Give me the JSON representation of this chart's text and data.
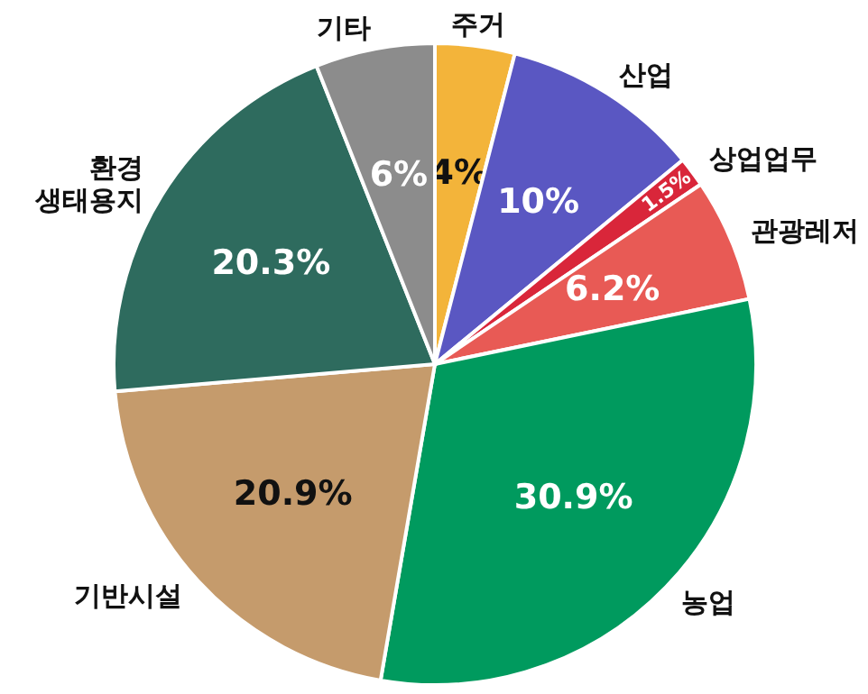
{
  "chart_data": {
    "type": "pie",
    "categories": [
      "주거",
      "산업",
      "상업업무",
      "관광레저",
      "농업",
      "기반시설",
      "환경\n생태용지",
      "기타"
    ],
    "values": [
      4,
      10,
      1.5,
      6.2,
      30.9,
      20.9,
      20.3,
      6
    ],
    "value_labels": [
      "4%",
      "10%",
      "1.5%",
      "6.2%",
      "30.9%",
      "20.9%",
      "20.3%",
      "6%"
    ],
    "colors": [
      "#f3b43a",
      "#5a57c2",
      "#d9263a",
      "#e85a55",
      "#009a5e",
      "#c59b6c",
      "#2e6b5e",
      "#8c8c8c"
    ]
  }
}
